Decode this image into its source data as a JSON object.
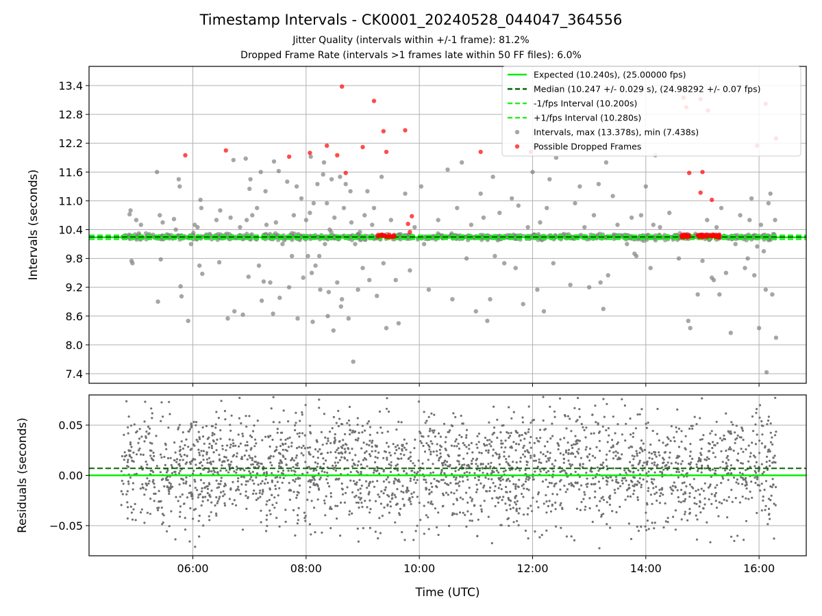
{
  "figure": {
    "title": "Timestamp Intervals - CK0001_20240528_044047_364556",
    "subtitle1": "Jitter Quality (intervals within +/-1 frame): 81.2%",
    "subtitle2": "Dropped Frame Rate (intervals >1 frames late within 50 FF files): 6.0%"
  },
  "colors": {
    "expected": "#00ee00",
    "median": "#006400",
    "interval_band": "#22ee22",
    "intervals": "#808080",
    "dropped": "#ff0000",
    "residuals": "#707070",
    "grid": "#b0b0b0"
  },
  "chart_data": [
    {
      "type": "scatter",
      "panel": "intervals",
      "ylabel": "Intervals (seconds)",
      "xlabel": "",
      "xlim": [
        "04:10",
        "16:50"
      ],
      "ylim": [
        7.2,
        13.8
      ],
      "yticks": [
        "7.4",
        "8.0",
        "8.6",
        "9.2",
        "9.8",
        "10.4",
        "11.0",
        "11.6",
        "12.2",
        "12.8",
        "13.4"
      ],
      "xticks": [
        "06:00",
        "08:00",
        "10:00",
        "12:00",
        "14:00",
        "16:00"
      ],
      "grid": true,
      "legend_placement": "top-right",
      "expected": 10.24,
      "median": 10.247,
      "minus_interval": 10.2,
      "plus_interval": 10.28,
      "legend": {
        "expected": "Expected (10.240s), (25.00000 fps)",
        "median": "Median (10.247 +/- 0.029 s), (24.98292 +/- 0.07 fps)",
        "minus": "-1/fps Interval (10.200s)",
        "plus": "+1/fps Interval (10.280s)",
        "intervals": "Intervals, max (13.378s), min (7.438s)",
        "dropped": "Possible Dropped Frames"
      },
      "time_range": [
        "04:44",
        "16:18"
      ],
      "max_interval": 13.378,
      "min_interval": 7.438,
      "outliers": [
        [
          "04:53",
          10.72
        ],
        [
          "04:54",
          10.8
        ],
        [
          "04:55",
          9.75
        ],
        [
          "04:56",
          9.7
        ],
        [
          "05:00",
          10.6
        ],
        [
          "05:05",
          10.5
        ],
        [
          "05:22",
          11.6
        ],
        [
          "05:23",
          8.9
        ],
        [
          "05:25",
          10.7
        ],
        [
          "05:26",
          9.78
        ],
        [
          "05:28",
          10.55
        ],
        [
          "05:40",
          10.62
        ],
        [
          "05:42",
          10.4
        ],
        [
          "05:45",
          11.45
        ],
        [
          "05:46",
          11.3
        ],
        [
          "05:47",
          9.22
        ],
        [
          "05:48",
          9.01
        ],
        [
          "05:55",
          8.5
        ],
        [
          "05:58",
          10.1
        ],
        [
          "06:02",
          10.5
        ],
        [
          "06:05",
          10.45
        ],
        [
          "06:07",
          9.65
        ],
        [
          "06:08",
          11.02
        ],
        [
          "06:09",
          10.85
        ],
        [
          "06:10",
          9.48
        ],
        [
          "06:20",
          10.2
        ],
        [
          "06:25",
          10.6
        ],
        [
          "06:28",
          9.72
        ],
        [
          "06:29",
          10.8
        ],
        [
          "06:37",
          8.55
        ],
        [
          "06:40",
          10.65
        ],
        [
          "06:43",
          11.85
        ],
        [
          "06:44",
          8.7
        ],
        [
          "06:50",
          10.45
        ],
        [
          "06:53",
          8.63
        ],
        [
          "06:56",
          11.88
        ],
        [
          "06:57",
          10.6
        ],
        [
          "06:59",
          9.42
        ],
        [
          "07:00",
          11.25
        ],
        [
          "07:01",
          11.45
        ],
        [
          "07:03",
          10.7
        ],
        [
          "07:08",
          10.85
        ],
        [
          "07:10",
          9.65
        ],
        [
          "07:12",
          11.6
        ],
        [
          "07:13",
          8.92
        ],
        [
          "07:15",
          9.32
        ],
        [
          "07:17",
          11.2
        ],
        [
          "07:18",
          10.5
        ],
        [
          "07:22",
          9.3
        ],
        [
          "07:25",
          8.65
        ],
        [
          "07:26",
          11.82
        ],
        [
          "07:28",
          10.55
        ],
        [
          "07:31",
          11.62
        ],
        [
          "07:32",
          8.98
        ],
        [
          "07:35",
          10.1
        ],
        [
          "07:40",
          11.4
        ],
        [
          "07:42",
          9.2
        ],
        [
          "07:45",
          9.85
        ],
        [
          "07:47",
          10.7
        ],
        [
          "07:50",
          11.3
        ],
        [
          "07:51",
          8.55
        ],
        [
          "07:55",
          11.05
        ],
        [
          "07:57",
          9.4
        ],
        [
          "08:00",
          10.6
        ],
        [
          "08:02",
          9.85
        ],
        [
          "08:04",
          10.75
        ],
        [
          "08:05",
          11.92
        ],
        [
          "08:06",
          9.5
        ],
        [
          "08:07",
          8.48
        ],
        [
          "08:08",
          10.95
        ],
        [
          "08:10",
          9.65
        ],
        [
          "08:12",
          11.35
        ],
        [
          "08:14",
          9.85
        ],
        [
          "08:15",
          9.15
        ],
        [
          "08:18",
          11.55
        ],
        [
          "08:19",
          11.8
        ],
        [
          "08:20",
          10.1
        ],
        [
          "08:22",
          10.95
        ],
        [
          "08:23",
          8.6
        ],
        [
          "08:24",
          9.1
        ],
        [
          "08:25",
          10.4
        ],
        [
          "08:27",
          11.45
        ],
        [
          "08:29",
          8.3
        ],
        [
          "08:30",
          10.65
        ],
        [
          "08:33",
          9.3
        ],
        [
          "08:36",
          11.5
        ],
        [
          "08:37",
          8.8
        ],
        [
          "08:38",
          8.95
        ],
        [
          "08:40",
          10.85
        ],
        [
          "08:42",
          11.35
        ],
        [
          "08:45",
          8.55
        ],
        [
          "08:47",
          11.2
        ],
        [
          "08:48",
          10.55
        ],
        [
          "08:50",
          7.65
        ],
        [
          "08:52",
          10.1
        ],
        [
          "08:55",
          9.15
        ],
        [
          "08:57",
          10.35
        ],
        [
          "09:00",
          9.6
        ],
        [
          "09:02",
          10.7
        ],
        [
          "09:05",
          11.2
        ],
        [
          "09:07",
          9.35
        ],
        [
          "09:10",
          10.5
        ],
        [
          "09:12",
          10.85
        ],
        [
          "09:15",
          9.02
        ],
        [
          "09:20",
          11.5
        ],
        [
          "09:22",
          9.7
        ],
        [
          "09:25",
          8.35
        ],
        [
          "09:30",
          10.6
        ],
        [
          "09:35",
          9.35
        ],
        [
          "09:38",
          8.45
        ],
        [
          "09:40",
          10.2
        ],
        [
          "09:45",
          11.15
        ],
        [
          "09:50",
          9.55
        ],
        [
          "09:55",
          10.45
        ],
        [
          "10:02",
          11.3
        ],
        [
          "10:05",
          10.1
        ],
        [
          "10:10",
          9.15
        ],
        [
          "10:20",
          10.6
        ],
        [
          "10:30",
          11.65
        ],
        [
          "10:35",
          8.95
        ],
        [
          "10:40",
          10.85
        ],
        [
          "10:45",
          11.8
        ],
        [
          "10:50",
          9.8
        ],
        [
          "10:55",
          10.5
        ],
        [
          "11:00",
          8.7
        ],
        [
          "11:05",
          11.15
        ],
        [
          "11:08",
          10.65
        ],
        [
          "11:12",
          8.5
        ],
        [
          "11:15",
          8.95
        ],
        [
          "11:18",
          11.5
        ],
        [
          "11:20",
          9.85
        ],
        [
          "11:25",
          10.75
        ],
        [
          "11:30",
          9.7
        ],
        [
          "11:38",
          11.05
        ],
        [
          "11:42",
          9.6
        ],
        [
          "11:45",
          10.9
        ],
        [
          "11:50",
          8.85
        ],
        [
          "11:55",
          10.45
        ],
        [
          "12:00",
          11.6
        ],
        [
          "12:05",
          9.15
        ],
        [
          "12:08",
          10.55
        ],
        [
          "12:12",
          8.7
        ],
        [
          "12:15",
          10.85
        ],
        [
          "12:18",
          11.45
        ],
        [
          "12:22",
          9.7
        ],
        [
          "12:25",
          11.9
        ],
        [
          "12:30",
          10.2
        ],
        [
          "12:40",
          9.25
        ],
        [
          "12:45",
          10.95
        ],
        [
          "12:50",
          11.3
        ],
        [
          "12:55",
          10.45
        ],
        [
          "13:00",
          9.2
        ],
        [
          "13:05",
          10.7
        ],
        [
          "13:10",
          11.35
        ],
        [
          "13:12",
          9.3
        ],
        [
          "13:15",
          8.75
        ],
        [
          "13:18",
          11.8
        ],
        [
          "13:20",
          9.45
        ],
        [
          "13:25",
          11.1
        ],
        [
          "13:30",
          10.5
        ],
        [
          "13:40",
          10.1
        ],
        [
          "13:45",
          10.65
        ],
        [
          "13:48",
          9.9
        ],
        [
          "13:50",
          9.85
        ],
        [
          "13:55",
          10.7
        ],
        [
          "14:00",
          11.3
        ],
        [
          "14:05",
          9.6
        ],
        [
          "14:08",
          10.5
        ],
        [
          "14:10",
          11.95
        ],
        [
          "14:15",
          10.45
        ],
        [
          "14:25",
          10.75
        ],
        [
          "14:35",
          9.8
        ],
        [
          "14:45",
          8.5
        ],
        [
          "14:47",
          8.35
        ],
        [
          "14:50",
          10.25
        ],
        [
          "14:55",
          9.05
        ],
        [
          "15:00",
          9.75
        ],
        [
          "15:05",
          10.6
        ],
        [
          "15:10",
          9.4
        ],
        [
          "15:12",
          9.35
        ],
        [
          "15:15",
          10.45
        ],
        [
          "15:18",
          9.05
        ],
        [
          "15:20",
          10.85
        ],
        [
          "15:25",
          9.5
        ],
        [
          "15:30",
          8.25
        ],
        [
          "15:35",
          10.1
        ],
        [
          "15:40",
          10.7
        ],
        [
          "15:45",
          9.6
        ],
        [
          "15:48",
          9.8
        ],
        [
          "15:50",
          10.6
        ],
        [
          "15:52",
          11.05
        ],
        [
          "15:55",
          9.45
        ],
        [
          "15:58",
          10.05
        ],
        [
          "16:00",
          8.35
        ],
        [
          "16:02",
          10.5
        ],
        [
          "16:05",
          9.95
        ],
        [
          "16:07",
          9.15
        ],
        [
          "16:08",
          7.43
        ],
        [
          "16:10",
          10.95
        ],
        [
          "16:12",
          11.15
        ],
        [
          "16:14",
          9.05
        ],
        [
          "16:16",
          10.3
        ],
        [
          "16:18",
          8.15
        ],
        [
          "16:17",
          10.6
        ]
      ],
      "dropped": [
        [
          "05:52",
          11.95
        ],
        [
          "06:35",
          12.05
        ],
        [
          "07:42",
          11.92
        ],
        [
          "08:04",
          12.0
        ],
        [
          "08:22",
          12.15
        ],
        [
          "08:33",
          11.95
        ],
        [
          "08:38",
          13.38
        ],
        [
          "08:42",
          11.58
        ],
        [
          "09:00",
          12.12
        ],
        [
          "09:12",
          13.08
        ],
        [
          "09:22",
          12.45
        ],
        [
          "09:25",
          12.02
        ],
        [
          "09:45",
          12.47
        ],
        [
          "09:48",
          10.52
        ],
        [
          "09:52",
          10.68
        ],
        [
          "09:50",
          10.35
        ],
        [
          "11:05",
          12.02
        ],
        [
          "11:58",
          12.02
        ],
        [
          "14:40",
          13.15
        ],
        [
          "14:43",
          12.95
        ],
        [
          "14:46",
          11.58
        ],
        [
          "14:58",
          11.17
        ],
        [
          "15:00",
          11.6
        ],
        [
          "15:06",
          12.88
        ],
        [
          "15:10",
          11.02
        ],
        [
          "15:58",
          12.15
        ],
        [
          "16:07",
          13.02
        ],
        [
          "16:18",
          12.3
        ],
        [
          "14:58",
          13.12
        ]
      ],
      "dropped_clusters": [
        [
          "09:14",
          "09:35"
        ],
        [
          "14:38",
          "14:46"
        ],
        [
          "14:55",
          "15:05"
        ],
        [
          "15:08",
          "15:18"
        ]
      ]
    },
    {
      "type": "scatter",
      "panel": "residuals",
      "ylabel": "Residuals (seconds)",
      "xlabel": "Time (UTC)",
      "xlim": [
        "04:10",
        "16:50"
      ],
      "ylim": [
        -0.08,
        0.08
      ],
      "yticks": [
        "−0.05",
        "0.00",
        "0.05"
      ],
      "ytick_values": [
        -0.05,
        0.0,
        0.05
      ],
      "xticks": [
        "06:00",
        "08:00",
        "10:00",
        "12:00",
        "14:00",
        "16:00"
      ],
      "grid": true,
      "zero_line": 0.0,
      "median_offset": 0.007,
      "spread": 0.029,
      "time_range": [
        "04:44",
        "16:18"
      ]
    }
  ]
}
